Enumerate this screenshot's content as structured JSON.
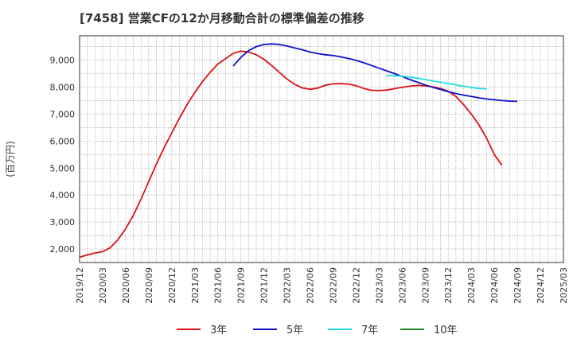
{
  "chart_data": {
    "type": "line",
    "title": "[7458]  営業CFの12か月移動合計の標準偏差の推移",
    "ylabel": "(百万円)",
    "xlabel": "",
    "grid": true,
    "legend_position": "bottom",
    "x_ticks": [
      "2019/12",
      "2020/03",
      "2020/06",
      "2020/09",
      "2020/12",
      "2021/03",
      "2021/06",
      "2021/09",
      "2021/12",
      "2022/03",
      "2022/06",
      "2022/09",
      "2022/12",
      "2023/03",
      "2023/06",
      "2023/09",
      "2023/12",
      "2024/03",
      "2024/06",
      "2024/09",
      "2024/12",
      "2025/03"
    ],
    "y_ticks": [
      "2,000",
      "3,000",
      "4,000",
      "5,000",
      "6,000",
      "7,000",
      "8,000",
      "9,000"
    ],
    "ylim": [
      1500,
      9900
    ],
    "series": [
      {
        "name": "3年",
        "color": "#dd1111",
        "points": [
          [
            "2019/12",
            1700
          ],
          [
            "2020/01",
            1780
          ],
          [
            "2020/02",
            1850
          ],
          [
            "2020/03",
            1900
          ],
          [
            "2020/04",
            2050
          ],
          [
            "2020/05",
            2350
          ],
          [
            "2020/06",
            2750
          ],
          [
            "2020/07",
            3250
          ],
          [
            "2020/08",
            3850
          ],
          [
            "2020/09",
            4500
          ],
          [
            "2020/10",
            5150
          ],
          [
            "2020/11",
            5750
          ],
          [
            "2020/12",
            6300
          ],
          [
            "2021/01",
            6850
          ],
          [
            "2021/02",
            7350
          ],
          [
            "2021/03",
            7800
          ],
          [
            "2021/04",
            8200
          ],
          [
            "2021/05",
            8550
          ],
          [
            "2021/06",
            8850
          ],
          [
            "2021/07",
            9050
          ],
          [
            "2021/08",
            9250
          ],
          [
            "2021/09",
            9330
          ],
          [
            "2021/10",
            9300
          ],
          [
            "2021/11",
            9200
          ],
          [
            "2021/12",
            9030
          ],
          [
            "2022/01",
            8800
          ],
          [
            "2022/02",
            8550
          ],
          [
            "2022/03",
            8300
          ],
          [
            "2022/04",
            8100
          ],
          [
            "2022/05",
            7970
          ],
          [
            "2022/06",
            7920
          ],
          [
            "2022/07",
            7960
          ],
          [
            "2022/08",
            8070
          ],
          [
            "2022/09",
            8120
          ],
          [
            "2022/10",
            8130
          ],
          [
            "2022/11",
            8110
          ],
          [
            "2022/12",
            8050
          ],
          [
            "2023/01",
            7950
          ],
          [
            "2023/02",
            7880
          ],
          [
            "2023/03",
            7870
          ],
          [
            "2023/04",
            7890
          ],
          [
            "2023/05",
            7940
          ],
          [
            "2023/06",
            7990
          ],
          [
            "2023/07",
            8030
          ],
          [
            "2023/08",
            8060
          ],
          [
            "2023/09",
            8050
          ],
          [
            "2023/10",
            8010
          ],
          [
            "2023/11",
            7950
          ],
          [
            "2023/12",
            7850
          ],
          [
            "2024/01",
            7650
          ],
          [
            "2024/02",
            7350
          ],
          [
            "2024/03",
            7000
          ],
          [
            "2024/04",
            6600
          ],
          [
            "2024/05",
            6100
          ],
          [
            "2024/06",
            5500
          ],
          [
            "2024/07",
            5100
          ]
        ]
      },
      {
        "name": "5年",
        "color": "#1111cc",
        "points": [
          [
            "2021/08",
            8780
          ],
          [
            "2021/09",
            9100
          ],
          [
            "2021/10",
            9350
          ],
          [
            "2021/11",
            9500
          ],
          [
            "2021/12",
            9580
          ],
          [
            "2022/01",
            9600
          ],
          [
            "2022/02",
            9580
          ],
          [
            "2022/03",
            9520
          ],
          [
            "2022/04",
            9450
          ],
          [
            "2022/05",
            9380
          ],
          [
            "2022/06",
            9300
          ],
          [
            "2022/07",
            9240
          ],
          [
            "2022/08",
            9200
          ],
          [
            "2022/09",
            9170
          ],
          [
            "2022/10",
            9120
          ],
          [
            "2022/11",
            9060
          ],
          [
            "2022/12",
            8990
          ],
          [
            "2023/01",
            8900
          ],
          [
            "2023/02",
            8800
          ],
          [
            "2023/03",
            8700
          ],
          [
            "2023/04",
            8600
          ],
          [
            "2023/05",
            8500
          ],
          [
            "2023/06",
            8390
          ],
          [
            "2023/07",
            8280
          ],
          [
            "2023/08",
            8180
          ],
          [
            "2023/09",
            8080
          ],
          [
            "2023/10",
            7990
          ],
          [
            "2023/11",
            7910
          ],
          [
            "2023/12",
            7830
          ],
          [
            "2024/01",
            7760
          ],
          [
            "2024/02",
            7700
          ],
          [
            "2024/03",
            7650
          ],
          [
            "2024/04",
            7600
          ],
          [
            "2024/05",
            7560
          ],
          [
            "2024/06",
            7530
          ],
          [
            "2024/07",
            7500
          ],
          [
            "2024/08",
            7480
          ],
          [
            "2024/09",
            7470
          ]
        ]
      },
      {
        "name": "7年",
        "color": "#22dddd",
        "points": [
          [
            "2023/04",
            8430
          ],
          [
            "2023/05",
            8420
          ],
          [
            "2023/06",
            8400
          ],
          [
            "2023/07",
            8370
          ],
          [
            "2023/08",
            8330
          ],
          [
            "2023/09",
            8280
          ],
          [
            "2023/10",
            8230
          ],
          [
            "2023/11",
            8180
          ],
          [
            "2023/12",
            8130
          ],
          [
            "2024/01",
            8080
          ],
          [
            "2024/02",
            8030
          ],
          [
            "2024/03",
            7990
          ],
          [
            "2024/04",
            7950
          ],
          [
            "2024/05",
            7930
          ]
        ]
      },
      {
        "name": "10年",
        "color": "#228822",
        "points": []
      }
    ]
  }
}
